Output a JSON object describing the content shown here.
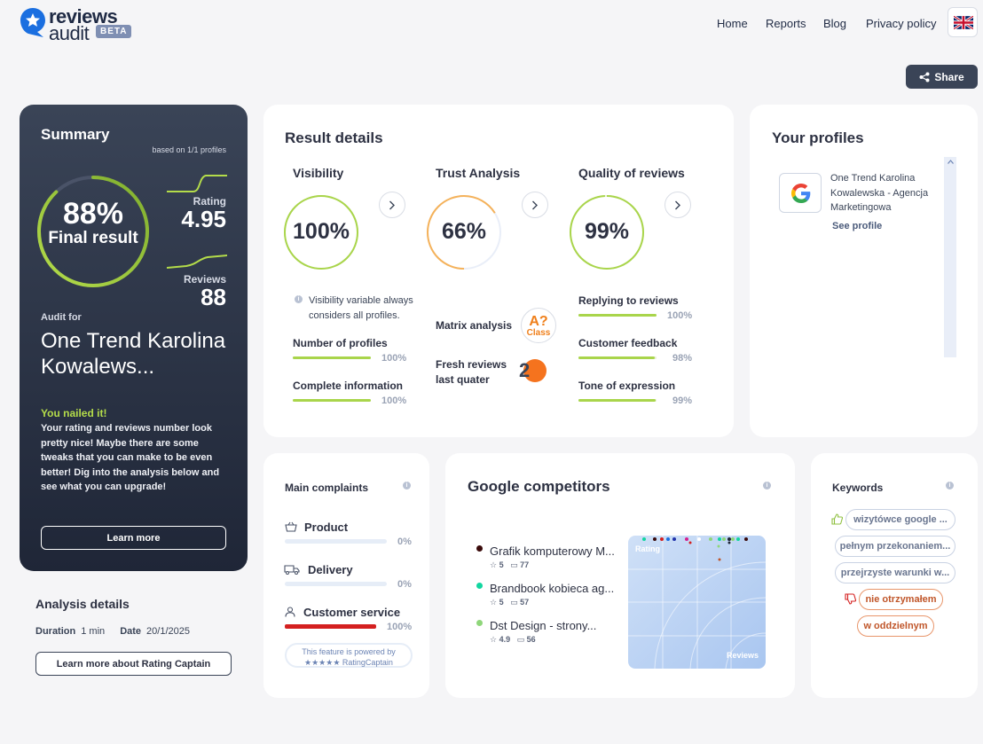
{
  "logo": {
    "word1": "reviews",
    "word2": "audit",
    "badge": "BETA"
  },
  "nav": {
    "home": "Home",
    "reports": "Reports",
    "blog": "Blog",
    "privacy": "Privacy policy"
  },
  "share": {
    "label": "Share"
  },
  "summary": {
    "title": "Summary",
    "based_on": "based on 1/1 profiles",
    "final_pct": "88%",
    "final_label": "Final result",
    "final_progress": 0.88,
    "rating_label": "Rating",
    "rating_value": "4.95",
    "reviews_label": "Reviews",
    "reviews_value": "88",
    "audit_for": "Audit for",
    "business_name": "One Trend Karolina Kowalews...",
    "nailed_title": "You nailed it!",
    "nailed_text": "Your rating and reviews number look pretty nice! Maybe there are some tweaks that you can make to be even better! Dig into the analysis below and see what you can upgrade!",
    "learn_more": "Learn more"
  },
  "analysis": {
    "title": "Analysis details",
    "duration_label": "Duration",
    "duration_value": "1 min",
    "date_label": "Date",
    "date_value": "20/1/2025",
    "rating_captain_btn": "Learn more about Rating Captain"
  },
  "result": {
    "title": "Result details",
    "visibility": {
      "title": "Visibility",
      "pct": "100%",
      "progress": 1.0,
      "note": "Visibility variable always considers all profiles.",
      "metrics": [
        {
          "label": "Number of profiles",
          "value": "100%",
          "fill": 1.0
        },
        {
          "label": "Complete information",
          "value": "100%",
          "fill": 1.0
        }
      ]
    },
    "trust": {
      "title": "Trust Analysis",
      "pct": "66%",
      "progress": 0.66,
      "matrix_label": "Matrix analysis",
      "class_letter": "A?",
      "class_word": "Class",
      "fresh_label_1": "Fresh reviews",
      "fresh_label_2": "last quater",
      "fresh_value": "2"
    },
    "quality": {
      "title": "Quality of reviews",
      "pct": "99%",
      "progress": 0.99,
      "metrics": [
        {
          "label": "Replying to reviews",
          "value": "100%",
          "fill": 1.0
        },
        {
          "label": "Customer feedback",
          "value": "98%",
          "fill": 0.98
        },
        {
          "label": "Tone of expression",
          "value": "99%",
          "fill": 0.99
        }
      ]
    }
  },
  "profiles": {
    "title": "Your profiles",
    "items": [
      {
        "name": "One Trend Karolina Kowalewska - Agencja Marketingowa",
        "link": "See profile",
        "source_icon": "google-g-icon"
      }
    ]
  },
  "complaints": {
    "title": "Main complaints",
    "items": [
      {
        "label": "Product",
        "value": "0%",
        "fill": 0,
        "icon": "basket-icon"
      },
      {
        "label": "Delivery",
        "value": "0%",
        "fill": 0,
        "icon": "truck-icon"
      },
      {
        "label": "Customer service",
        "value": "100%",
        "fill": 1.0,
        "icon": "person-icon"
      }
    ],
    "powered_line1": "This feature is powered by",
    "powered_line2": "★★★★★ RatingCaptain"
  },
  "competitors": {
    "title": "Google competitors",
    "items": [
      {
        "name": "Grafik komputerowy M...",
        "rating": "5",
        "reviews": "77",
        "color": "#3a0a0a"
      },
      {
        "name": "Brandbook kobieca ag...",
        "rating": "5",
        "reviews": "57",
        "color": "#12d6a0"
      },
      {
        "name": "Dst Design - strony...",
        "rating": "4.9",
        "reviews": "56",
        "color": "#8fd67a"
      }
    ],
    "plot_y_label": "Rating",
    "plot_x_label": "Reviews"
  },
  "keywords": {
    "title": "Keywords",
    "positive": [
      "wizytówce google ...",
      "pełnym przekonaniem...",
      "przejrzyste warunki w..."
    ],
    "negative": [
      "nie otrzymałem",
      "w oddzielnym"
    ]
  },
  "colors": {
    "accent_green": "#a9d54b",
    "trust_orange": "#f5b25a",
    "dark_card": "#2b3347",
    "fresh_orange": "#f5731e"
  }
}
